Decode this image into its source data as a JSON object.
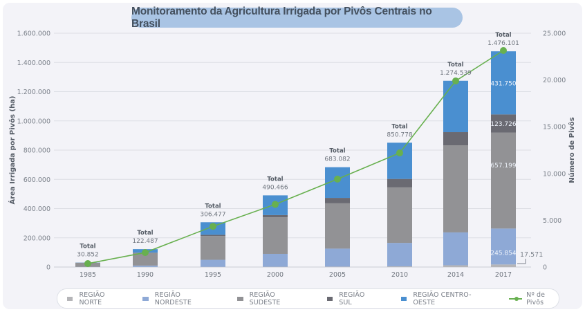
{
  "chart_data": {
    "type": "bar",
    "stacked": true,
    "title": "Monitoramento da Agricultura Irrigada por Pivôs Centrais no Brasil",
    "xlabel": "",
    "ylabel": "Área Irrigada por Pivôs (ha)",
    "y2label": "Número de Pivôs",
    "ylim": [
      0,
      1600000
    ],
    "y2lim": [
      0,
      25000
    ],
    "yticks": [
      "0",
      "200.000",
      "400.000",
      "600.000",
      "800.000",
      "1.000.000",
      "1.200.000",
      "1.400.000",
      "1.600.000"
    ],
    "y2ticks": [
      "0",
      "5.000",
      "10.000",
      "15.000",
      "20.000",
      "25.000"
    ],
    "categories": [
      "1985",
      "1990",
      "1995",
      "2000",
      "2005",
      "2010",
      "2014",
      "2017"
    ],
    "total_label": "Total",
    "totals": [
      30852,
      122487,
      306477,
      490466,
      683082,
      850778,
      1274539,
      1476101
    ],
    "totals_text": [
      "30.852",
      "122.487",
      "306.477",
      "490.466",
      "683.082",
      "850.778",
      "1.274.539",
      "1.476.101"
    ],
    "series": [
      {
        "name": "REGIÃO NORTE",
        "color": "#b5b5b8",
        "values": [
          0,
          1000,
          1500,
          2000,
          3000,
          5000,
          12000,
          17571
        ]
      },
      {
        "name": "REGIÃO NORDESTE",
        "color": "#8ea9d6",
        "values": [
          1000,
          9000,
          48000,
          88000,
          123000,
          160000,
          225000,
          245854
        ]
      },
      {
        "name": "REGIÃO SUDESTE",
        "color": "#929295",
        "values": [
          28000,
          86000,
          163000,
          250000,
          310000,
          380000,
          596000,
          657199
        ]
      },
      {
        "name": "REGIÃO SUL",
        "color": "#6a6a72",
        "values": [
          852,
          2487,
          7977,
          15466,
          37082,
          57778,
          90000,
          123726
        ]
      },
      {
        "name": "REGIÃO CENTRO-OESTE",
        "color": "#4a8fd0",
        "values": [
          1000,
          24000,
          86000,
          135000,
          210000,
          248000,
          351539,
          431750
        ]
      }
    ],
    "segment_labels_2017": {
      "NORTE": "17.571",
      "NORDESTE": "245.854",
      "SUDESTE": "657.199",
      "SUL": "123.726",
      "CENTRO-OESTE": "431.750"
    },
    "line_series": {
      "name": "Nº de Pivôs",
      "color": "#68b04f",
      "axis": "right",
      "values": [
        370,
        1550,
        4350,
        6700,
        9400,
        12200,
        19900,
        23150
      ]
    },
    "grid": true,
    "legend_position": "bottom"
  }
}
